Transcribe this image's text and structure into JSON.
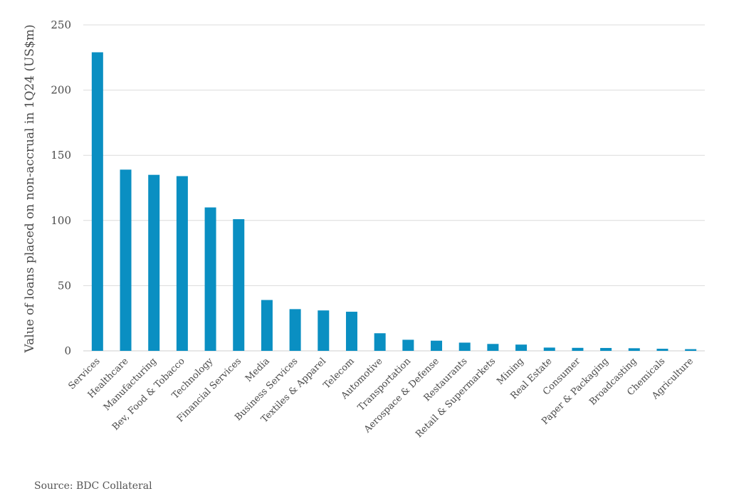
{
  "chart_data": {
    "type": "bar",
    "categories": [
      "Services",
      "Healthcare",
      "Manufacturing",
      "Bev, Food & Tobacco",
      "Technology",
      "Financial Services",
      "Media",
      "Business Services",
      "Textiles & Apparel",
      "Telecom",
      "Automotive",
      "Transportation",
      "Aerospace & Defense",
      "Restaurants",
      "Retail & Supermarkets",
      "Mining",
      "Real Estate",
      "Consumer",
      "Paper & Packaging",
      "Broadcasting",
      "Chemicals",
      "Agriculture"
    ],
    "values": [
      229,
      139,
      135,
      134,
      110,
      101,
      39,
      32,
      31,
      30,
      13.5,
      8.5,
      7.8,
      6.3,
      5.3,
      4.8,
      2.5,
      2.3,
      2.2,
      2.0,
      1.6,
      1.3
    ],
    "ylabel": "Value of loans placed on non-accrual in 1Q24 (US$m)",
    "ylim": [
      0,
      250
    ],
    "yticks": [
      0,
      50,
      100,
      150,
      200,
      250
    ],
    "grid": true,
    "bar_color": "#0a8fc2",
    "source": "Source: BDC Collateral"
  }
}
